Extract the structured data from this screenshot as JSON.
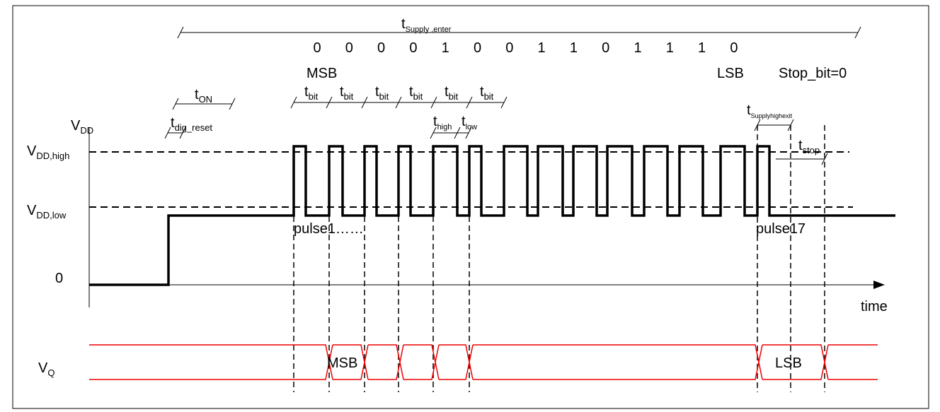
{
  "supply_enter": {
    "main": "t",
    "sub": "Supply ,enter"
  },
  "bits": [
    "0",
    "0",
    "0",
    "0",
    "1",
    "0",
    "0",
    "1",
    "1",
    "0",
    "1",
    "1",
    "1",
    "0"
  ],
  "msb": "MSB",
  "lsb": "LSB",
  "stop_bit": "Stop_bit=0",
  "t_on": {
    "main": "t",
    "sub": "ON"
  },
  "t_dig_reset": {
    "main": "t",
    "sub": "dig_reset"
  },
  "t_bit": [
    {
      "main": "t",
      "sub": "bit"
    },
    {
      "main": "t",
      "sub": "bit"
    },
    {
      "main": "t",
      "sub": "bit"
    },
    {
      "main": "t",
      "sub": "bit"
    },
    {
      "main": "t",
      "sub": "bit"
    },
    {
      "main": "t",
      "sub": "bit"
    }
  ],
  "t_high": {
    "main": "t",
    "sub": "high"
  },
  "t_low": {
    "main": "t",
    "sub": "low"
  },
  "t_supply_high_exit": {
    "main": "t",
    "sub": "Supplyhighexit"
  },
  "t_stop": {
    "main": "t",
    "sub": "stop"
  },
  "v_dd": {
    "main": "V",
    "sub": "DD"
  },
  "v_dd_high": {
    "main": "V",
    "sub": "DD,high"
  },
  "v_dd_low": {
    "main": "V",
    "sub": "DD,low"
  },
  "zero": "0",
  "pulse1": "pulse1……",
  "pulse17": "pulse17",
  "time": "time",
  "v_q": {
    "main": "V",
    "sub": "Q"
  },
  "q_msb": "MSB",
  "q_lsb": "LSB"
}
